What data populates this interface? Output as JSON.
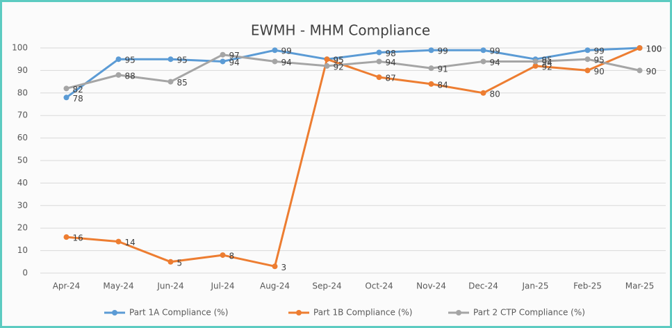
{
  "chart_data": {
    "type": "line",
    "title": "EWMH - MHM Compliance",
    "categories": [
      "Apr-24",
      "May-24",
      "Jun-24",
      "Jul-24",
      "Aug-24",
      "Sep-24",
      "Oct-24",
      "Nov-24",
      "Dec-24",
      "Jan-25",
      "Feb-25",
      "Mar-25"
    ],
    "series": [
      {
        "name": "Part 1A Compliance (%)",
        "color": "#5b9bd5",
        "values": [
          78,
          95,
          95,
          94,
          99,
          95,
          98,
          99,
          99,
          95,
          99,
          100
        ]
      },
      {
        "name": "Part 1B Compliance (%)",
        "color": "#ed7d31",
        "values": [
          16,
          14,
          5,
          8,
          3,
          95,
          87,
          84,
          80,
          92,
          90,
          100
        ]
      },
      {
        "name": "Part 2 CTP Compliance (%)",
        "color": "#a5a5a5",
        "values": [
          82,
          88,
          85,
          97,
          94,
          92,
          94,
          91,
          94,
          94,
          95,
          90
        ]
      }
    ],
    "ylim": [
      0,
      100
    ],
    "yticks": [
      0,
      10,
      20,
      30,
      40,
      50,
      60,
      70,
      80,
      90,
      100
    ],
    "grid": true,
    "legend": "bottom"
  }
}
